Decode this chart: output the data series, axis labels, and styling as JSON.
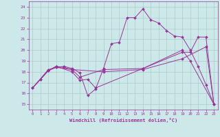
{
  "xlabel": "Windchill (Refroidissement éolien,°C)",
  "bg_color": "#cce8e8",
  "grid_color": "#aacccc",
  "line_color": "#993399",
  "xlim": [
    -0.5,
    23.5
  ],
  "ylim": [
    14.5,
    24.5
  ],
  "xticks": [
    0,
    1,
    2,
    3,
    4,
    5,
    6,
    7,
    8,
    9,
    10,
    11,
    12,
    13,
    14,
    15,
    16,
    17,
    18,
    19,
    20,
    21,
    22,
    23
  ],
  "yticks": [
    15,
    16,
    17,
    18,
    19,
    20,
    21,
    22,
    23,
    24
  ],
  "lines": [
    {
      "x": [
        0,
        1,
        2,
        3,
        4,
        5,
        6,
        7,
        8,
        9,
        10,
        11,
        12,
        13,
        14,
        15,
        16,
        17,
        18,
        19,
        20,
        21,
        22,
        23
      ],
      "y": [
        16.5,
        17.3,
        18.1,
        18.4,
        18.5,
        18.3,
        17.9,
        15.8,
        16.4,
        18.3,
        20.6,
        20.7,
        23.0,
        23.0,
        23.8,
        22.8,
        22.5,
        21.8,
        21.3,
        21.2,
        20.0,
        18.5,
        16.8,
        15.0
      ]
    },
    {
      "x": [
        0,
        1,
        2,
        3,
        4,
        5,
        6,
        9,
        14,
        19,
        20,
        21,
        22,
        23
      ],
      "y": [
        16.5,
        17.3,
        18.1,
        18.5,
        18.4,
        18.2,
        17.5,
        18.2,
        18.3,
        19.8,
        19.8,
        21.2,
        21.2,
        15.0
      ]
    },
    {
      "x": [
        0,
        2,
        3,
        5,
        6,
        7,
        8,
        14,
        19,
        20,
        23
      ],
      "y": [
        16.5,
        18.1,
        18.5,
        18.0,
        17.2,
        17.3,
        16.5,
        18.3,
        20.0,
        19.0,
        15.0
      ]
    },
    {
      "x": [
        0,
        2,
        3,
        5,
        9,
        14,
        19,
        22,
        23
      ],
      "y": [
        16.5,
        18.2,
        18.4,
        18.2,
        18.0,
        18.2,
        19.2,
        20.3,
        15.0
      ]
    }
  ]
}
